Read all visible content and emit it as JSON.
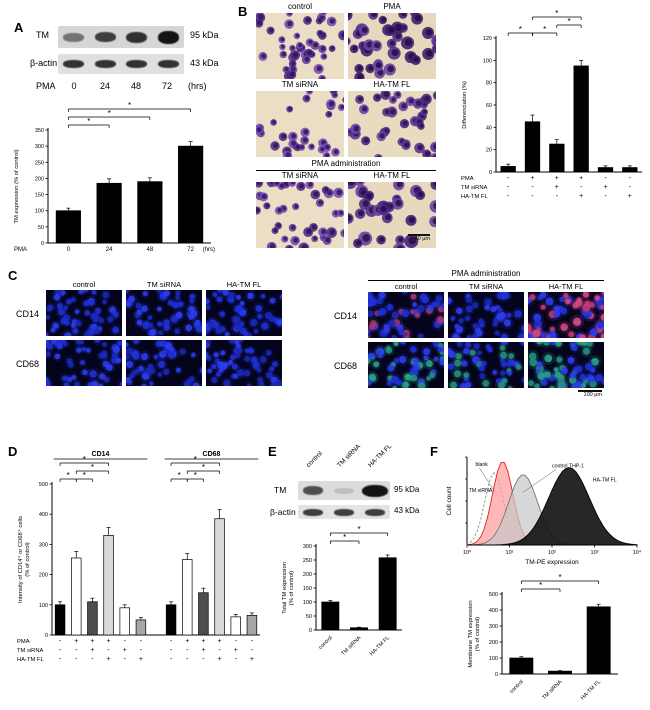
{
  "panelA": {
    "label": "A",
    "blot": {
      "tm_label": "TM",
      "tm_size": "95 kDa",
      "actin_label": "β-actin",
      "actin_size": "43 kDa",
      "xlabel": "PMA",
      "timepoints": [
        "0",
        "24",
        "48",
        "72"
      ],
      "unit": "(hrs)",
      "tm_box": {
        "bands": [
          {
            "o": 0.5,
            "h": 9
          },
          {
            "o": 0.78,
            "h": 10
          },
          {
            "o": 0.85,
            "h": 11
          },
          {
            "o": 1,
            "h": 13
          }
        ]
      },
      "actin_box": {
        "bands": [
          {
            "o": 0.85,
            "h": 8
          },
          {
            "o": 0.85,
            "h": 8
          },
          {
            "o": 0.85,
            "h": 8
          },
          {
            "o": 0.85,
            "h": 8
          }
        ]
      }
    }
  },
  "panelB": {
    "label": "B",
    "headers": {
      "r1c1": "control",
      "r1c2": "PMA",
      "r2c1": "TM siRNA",
      "r2c2": "HA-TM FL",
      "admin": "PMA administration",
      "r3c1": "TM siRNA",
      "r3c2": "HA-TM FL"
    },
    "scalebar": "40 µm",
    "micro": [
      {
        "bg": "#eadfc4",
        "n": 40,
        "rmin": 3.2,
        "rmax": 5.2,
        "colors": [
          "#6b3fa0",
          "#4f2a86",
          "#7b4bb4"
        ],
        "nucleus": "#2c1257",
        "seed": 11
      },
      {
        "bg": "#e5d8bc",
        "n": 36,
        "rmin": 4.2,
        "rmax": 6.8,
        "colors": [
          "#552c8e",
          "#3f1f70",
          "#6b3fa0"
        ],
        "nucleus": "#1f0c42",
        "seed": 22
      },
      {
        "bg": "#eadfc4",
        "n": 32,
        "rmin": 3.2,
        "rmax": 5.0,
        "colors": [
          "#6b3fa0",
          "#55318a",
          "#7b4bb4"
        ],
        "nucleus": "#2c1257",
        "seed": 33
      },
      {
        "bg": "#e8dcc0",
        "n": 36,
        "rmin": 3.6,
        "rmax": 5.6,
        "colors": [
          "#5e338f",
          "#4a2680",
          "#7040a8"
        ],
        "nucleus": "#251050",
        "seed": 44
      },
      {
        "bg": "#eadfc4",
        "n": 38,
        "rmin": 3.4,
        "rmax": 5.4,
        "colors": [
          "#6b3fa0",
          "#512c88",
          "#7b4bb4"
        ],
        "nucleus": "#2c1257",
        "seed": 55
      },
      {
        "bg": "#e6d9bd",
        "n": 30,
        "rmin": 4.6,
        "rmax": 7.2,
        "colors": [
          "#552c8e",
          "#441f78",
          "#6b3fa0"
        ],
        "nucleus": "#1f0c42",
        "seed": 66
      }
    ]
  },
  "panelC": {
    "label": "C",
    "row1": "CD14",
    "row2": "CD68",
    "left_headers": [
      "control",
      "TM siRNA",
      "HA-TM FL"
    ],
    "right_title": "PMA administration",
    "right_headers": [
      "control",
      "TM siRNA",
      "HA-TM FL"
    ],
    "scalebar": "100 µm",
    "micro_left": [
      {
        "bg": "#04041c",
        "n": 50,
        "rmin": 2.2,
        "rmax": 3.8,
        "colors": [
          "#2030d8",
          "#1a28b8",
          "#2c3cee"
        ],
        "glow": true,
        "seed": 101
      },
      {
        "bg": "#04041c",
        "n": 46,
        "rmin": 2.2,
        "rmax": 3.8,
        "colors": [
          "#2030d8",
          "#1a28b8",
          "#2c3cee"
        ],
        "glow": true,
        "seed": 102
      },
      {
        "bg": "#04041c",
        "n": 50,
        "rmin": 2.2,
        "rmax": 3.8,
        "colors": [
          "#2030d8",
          "#1a28b8",
          "#2c3cee"
        ],
        "glow": true,
        "seed": 103
      },
      {
        "bg": "#04041c",
        "n": 48,
        "rmin": 2.2,
        "rmax": 3.8,
        "colors": [
          "#2030d8",
          "#1a28b8",
          "#2c3cee"
        ],
        "glow": true,
        "seed": 104
      },
      {
        "bg": "#04041c",
        "n": 44,
        "rmin": 2.2,
        "rmax": 3.8,
        "colors": [
          "#2030d8",
          "#1a28b8",
          "#2c3cee"
        ],
        "glow": true,
        "seed": 105
      },
      {
        "bg": "#04041c",
        "n": 48,
        "rmin": 2.2,
        "rmax": 3.8,
        "colors": [
          "#2030d8",
          "#1a28b8",
          "#2c3cee"
        ],
        "glow": true,
        "seed": 106
      }
    ],
    "micro_right": [
      {
        "bg": "#04041c",
        "n": 55,
        "rmin": 2.2,
        "rmax": 3.9,
        "colors": [
          "#2030d8",
          "#1a28b8",
          "#2c3cee",
          "#a23a6a"
        ],
        "glow": true,
        "seed": 201
      },
      {
        "bg": "#04041c",
        "n": 48,
        "rmin": 2.2,
        "rmax": 3.8,
        "colors": [
          "#2030d8",
          "#1a28b8",
          "#2c3cee"
        ],
        "glow": true,
        "seed": 202
      },
      {
        "bg": "#06041c",
        "n": 62,
        "rmin": 2.4,
        "rmax": 4.2,
        "colors": [
          "#c23a72",
          "#2030d8",
          "#d14a80",
          "#2c3cee"
        ],
        "glow": true,
        "seed": 203
      },
      {
        "bg": "#04041c",
        "n": 55,
        "rmin": 2.2,
        "rmax": 3.9,
        "colors": [
          "#2030d8",
          "#23907c",
          "#2c3cee",
          "#2aa08a"
        ],
        "glow": true,
        "seed": 204
      },
      {
        "bg": "#04041c",
        "n": 48,
        "rmin": 2.2,
        "rmax": 3.8,
        "colors": [
          "#2030d8",
          "#1a28b8",
          "#2c3cee",
          "#23907c"
        ],
        "glow": true,
        "seed": 205
      },
      {
        "bg": "#04041c",
        "n": 58,
        "rmin": 2.3,
        "rmax": 4.0,
        "colors": [
          "#23907c",
          "#2030d8",
          "#2aa08a",
          "#2c3cee"
        ],
        "glow": true,
        "seed": 206
      }
    ]
  },
  "panelD": {
    "label": "D"
  },
  "panelE": {
    "label": "E",
    "headers": [
      "control",
      "TM siRNA",
      "HA-TM FL"
    ],
    "blot": {
      "tm_label": "TM",
      "tm_size": "95 kDa",
      "actin_label": "β-actin",
      "actin_size": "43 kDa",
      "tm_box": {
        "bands": [
          {
            "o": 0.7,
            "h": 9
          },
          {
            "o": 0.15,
            "h": 6
          },
          {
            "o": 1,
            "h": 12,
            "w": 26
          }
        ]
      },
      "actin_box": {
        "bands": [
          {
            "o": 0.8,
            "h": 7
          },
          {
            "o": 0.8,
            "h": 7
          },
          {
            "o": 0.8,
            "h": 7
          }
        ]
      }
    }
  },
  "panelF": {
    "label": "F"
  },
  "chart_data": [
    {
      "id": "panelA_bar",
      "type": "bar",
      "ylabel": [
        "TM expression (% of control)"
      ],
      "ylim": [
        0,
        350
      ],
      "yticks": [
        0,
        50,
        100,
        150,
        200,
        250,
        300,
        350
      ],
      "categories": [
        "0",
        "24",
        "48",
        "72"
      ],
      "xlabel_prefix": "PMA",
      "xlabel_suffix": "(hrs)",
      "values": [
        100,
        185,
        190,
        300
      ],
      "errors": [
        8,
        14,
        12,
        14
      ],
      "bar_color": "#000000",
      "margin_top": 30,
      "brackets": [
        {
          "from": 0,
          "to": 1,
          "level": 0,
          "label": "*"
        },
        {
          "from": 0,
          "to": 2,
          "level": 1,
          "label": "*"
        },
        {
          "from": 0,
          "to": 3,
          "level": 2,
          "label": "*"
        }
      ]
    },
    {
      "id": "panelB_bar",
      "type": "bar",
      "ylabel": [
        "Differenciation (%)"
      ],
      "ylim": [
        0,
        120
      ],
      "yticks": [
        0,
        20,
        40,
        60,
        80,
        100,
        120
      ],
      "values": [
        5,
        45,
        25,
        95,
        4,
        4
      ],
      "errors": [
        2,
        6,
        4,
        5,
        1.5,
        1.5
      ],
      "bar_color": "#000000",
      "margin_top": 30,
      "conditions": [
        {
          "label": "PMA",
          "values": [
            "-",
            "+",
            "+",
            "+",
            "-",
            "-"
          ]
        },
        {
          "label": "TM siRNA",
          "values": [
            "-",
            "-",
            "+",
            "-",
            "+",
            "-"
          ]
        },
        {
          "label": "HA-TM FL",
          "values": [
            "-",
            "-",
            "-",
            "+",
            "-",
            "+"
          ]
        }
      ],
      "brackets": [
        {
          "from": 0,
          "to": 1,
          "level": 0,
          "label": "*"
        },
        {
          "from": 1,
          "to": 2,
          "level": 0,
          "label": "*"
        },
        {
          "from": 2,
          "to": 3,
          "level": 1,
          "label": "*"
        },
        {
          "from": 1,
          "to": 3,
          "level": 2,
          "label": "*"
        }
      ]
    },
    {
      "id": "panelD_bar",
      "type": "bar",
      "ylabel": [
        "Intensity of CD14⁺ or CD68⁺ cells",
        "(% of control)"
      ],
      "ylim": [
        0,
        500
      ],
      "yticks": [
        0,
        100,
        200,
        300,
        400,
        500
      ],
      "margin_top": 36,
      "groups": [
        {
          "name": "CD14",
          "values": [
            100,
            255,
            110,
            330,
            90,
            50
          ],
          "errors": [
            10,
            22,
            12,
            26,
            10,
            8
          ]
        },
        {
          "name": "CD68",
          "values": [
            100,
            250,
            140,
            385,
            60,
            65
          ],
          "errors": [
            10,
            20,
            15,
            30,
            8,
            8
          ]
        }
      ],
      "bar_colors": [
        "#000000",
        "#ffffff",
        "#4d4d4d",
        "#d9d9d9",
        "#ffffff",
        "#a6a6a6"
      ],
      "conditions": [
        {
          "label": "PMA",
          "values": [
            "-",
            "+",
            "+",
            "+",
            "-",
            "-",
            "-",
            "+",
            "+",
            "+",
            "-",
            "-"
          ]
        },
        {
          "label": "TM siRNA",
          "values": [
            "-",
            "-",
            "+",
            "-",
            "+",
            "-",
            "-",
            "-",
            "+",
            "-",
            "+",
            "-"
          ]
        },
        {
          "label": "HA-TM FL",
          "values": [
            "-",
            "-",
            "-",
            "+",
            "-",
            "+",
            "-",
            "-",
            "-",
            "+",
            "-",
            "+"
          ]
        }
      ],
      "group_brackets": [
        {
          "from": 0,
          "to": 1,
          "level": 0,
          "label": "*"
        },
        {
          "from": 1,
          "to": 2,
          "level": 0,
          "label": "*"
        },
        {
          "from": 1,
          "to": 3,
          "level": 1,
          "label": "*"
        },
        {
          "from": 0,
          "to": 3,
          "level": 2,
          "label": "*"
        }
      ]
    },
    {
      "id": "panelE_bar",
      "type": "bar",
      "ylabel": [
        "Total TM expression",
        "(% of control)"
      ],
      "ylim": [
        0,
        300
      ],
      "yticks": [
        0,
        50,
        100,
        150,
        200,
        250,
        300
      ],
      "categories": [
        "control",
        "TM siRNA",
        "HA-TM FL"
      ],
      "rotate_labels": true,
      "values": [
        100,
        8,
        258
      ],
      "errors": [
        6,
        2,
        10
      ],
      "bar_color": "#000000",
      "margin_top": 22,
      "brackets": [
        {
          "from": 0,
          "to": 1,
          "level": 0,
          "label": "*"
        },
        {
          "from": 0,
          "to": 2,
          "level": 1,
          "label": "*"
        }
      ]
    },
    {
      "id": "panelF_flow",
      "type": "area",
      "ylabel": "Cell count",
      "xlabel": "TM-PE expression",
      "x_scale": "log",
      "xticks": [
        "10⁰",
        "10¹",
        "10²",
        "10³",
        "10⁴"
      ],
      "series": [
        {
          "name": "blank",
          "color": "#8a8a8a",
          "fill": "none",
          "dashed": true,
          "peak": 0.16,
          "sigma": 0.055,
          "amp": 0.82,
          "label_x": 0.05,
          "label_y": 0.1,
          "label_color": "#444444",
          "pointer": true
        },
        {
          "name": "TM siRNA",
          "color": "#e02020",
          "fill": "#ff9c9c",
          "peak": 0.21,
          "sigma": 0.06,
          "amp": 0.95,
          "label_x": 0.01,
          "label_y": 0.4,
          "label_color": "#e02020"
        },
        {
          "name": "control THP-1",
          "color": "#777777",
          "fill": "#c8c8c8",
          "peak": 0.33,
          "sigma": 0.085,
          "amp": 0.8,
          "label_x": 0.5,
          "label_y": 0.12,
          "label_color": "#222222",
          "pointer": true
        },
        {
          "name": "HA-TM FL",
          "color": "#000000",
          "fill": "#151515",
          "peak": 0.6,
          "sigma": 0.12,
          "amp": 0.88,
          "label_x": 0.74,
          "label_y": 0.28,
          "label_color": "#000000"
        }
      ]
    },
    {
      "id": "panelF_bar",
      "type": "bar",
      "ylabel": [
        "Membrane TM expression",
        "(% of control)"
      ],
      "ylim": [
        0,
        500
      ],
      "yticks": [
        0,
        100,
        200,
        300,
        400,
        500
      ],
      "categories": [
        "control",
        "TM siRNA",
        "HA-TM FL"
      ],
      "rotate_labels": true,
      "values": [
        100,
        18,
        420
      ],
      "errors": [
        8,
        3,
        16
      ],
      "bar_color": "#000000",
      "margin_top": 22,
      "brackets": [
        {
          "from": 0,
          "to": 1,
          "level": 0,
          "label": "*"
        },
        {
          "from": 0,
          "to": 2,
          "level": 1,
          "label": "*"
        }
      ]
    }
  ]
}
